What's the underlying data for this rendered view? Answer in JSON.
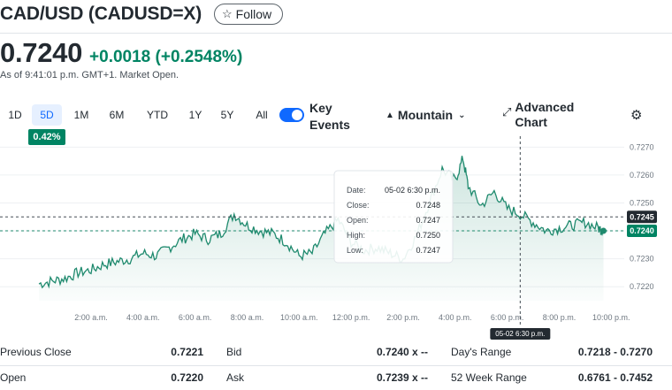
{
  "header": {
    "title": "CAD/USD (CADUSD=X)",
    "follow_label": "Follow"
  },
  "quote": {
    "price": "0.7240",
    "change": "+0.0018 (+0.2548%)",
    "as_of": "As of 9:41:01 p.m. GMT+1. Market Open."
  },
  "toolbar": {
    "ranges": [
      "1D",
      "5D",
      "1M",
      "6M",
      "YTD",
      "1Y",
      "5Y",
      "All"
    ],
    "active_range": "5D",
    "range_change": "0.42%",
    "key_events_label": "Key Events",
    "key_events_on": true,
    "chart_type_label": "Mountain",
    "advanced_chart_label": "Advanced Chart"
  },
  "tooltip": {
    "date_label": "Date:",
    "date_value": "05-02 6:30 p.m.",
    "close_label": "Close:",
    "close_value": "0.7248",
    "open_label": "Open:",
    "open_value": "0.7247",
    "high_label": "High:",
    "high_value": "0.7250",
    "low_label": "Low:",
    "low_value": "0.7247"
  },
  "crosshair_date": "05-02 6:30 p.m.",
  "crosshair_price": "0.7245",
  "last_price_label": "0.7240",
  "colors": {
    "accent": "#0f69ff",
    "positive": "#008463",
    "line": "#1f8a6e"
  },
  "chart_data": {
    "type": "area",
    "x_ticks": [
      "2:00 a.m.",
      "4:00 a.m.",
      "6:00 a.m.",
      "8:00 a.m.",
      "10:00 a.m.",
      "12:00 p.m.",
      "2:00 p.m.",
      "4:00 p.m.",
      "6:00 p.m.",
      "8:00 p.m.",
      "10:00 p.m."
    ],
    "y_ticks": [
      "0.7270",
      "0.7260",
      "0.7250",
      "0.7240",
      "0.7230",
      "0.7220"
    ],
    "ylim": [
      0.7215,
      0.7272
    ],
    "x_hours": [
      0,
      0.5,
      1,
      1.5,
      2,
      2.5,
      3,
      3.5,
      4,
      4.5,
      5,
      5.5,
      6,
      6.5,
      7,
      7.5,
      8,
      8.5,
      9,
      9.5,
      10,
      10.5,
      11,
      11.5,
      12,
      12.5,
      13,
      13.5,
      14,
      14.5,
      15,
      15.5,
      16,
      16.3,
      16.5,
      17,
      17.5,
      18,
      18.5,
      19,
      19.5,
      20,
      20.5,
      21,
      21.5,
      21.7
    ],
    "values": [
      0.7221,
      0.7222,
      0.7223,
      0.7225,
      0.7226,
      0.7228,
      0.7229,
      0.723,
      0.7232,
      0.7231,
      0.7234,
      0.7237,
      0.7239,
      0.7237,
      0.7239,
      0.7246,
      0.7242,
      0.724,
      0.7239,
      0.7236,
      0.7231,
      0.7232,
      0.7239,
      0.7244,
      0.7236,
      0.7233,
      0.7234,
      0.7232,
      0.723,
      0.7238,
      0.725,
      0.7262,
      0.7258,
      0.7266,
      0.7256,
      0.7249,
      0.7254,
      0.7248,
      0.7246,
      0.7243,
      0.724,
      0.7241,
      0.7242,
      0.7243,
      0.7241,
      0.724
    ]
  },
  "stats": {
    "rows": [
      [
        {
          "label": "Previous Close",
          "value": "0.7221"
        },
        {
          "label": "Bid",
          "value": "0.7240 x --"
        },
        {
          "label": "Day's Range",
          "value": "0.7218 - 0.7270"
        }
      ],
      [
        {
          "label": "Open",
          "value": "0.7220"
        },
        {
          "label": "Ask",
          "value": "0.7239 x --"
        },
        {
          "label": "52 Week Range",
          "value": "0.6761 - 0.7452"
        }
      ]
    ]
  }
}
